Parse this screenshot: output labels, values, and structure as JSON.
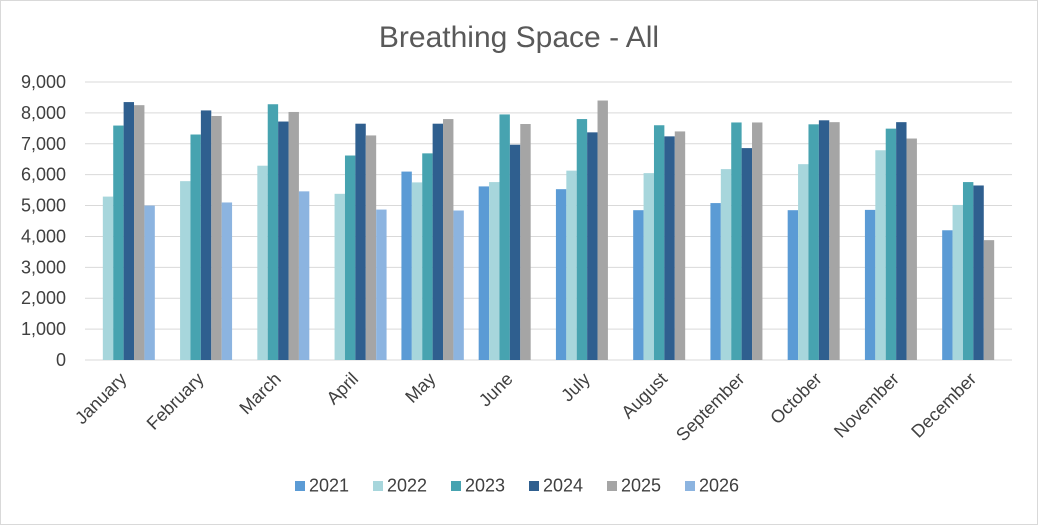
{
  "chart_data": {
    "type": "bar",
    "title": "Breathing Space - All",
    "xlabel": "",
    "ylabel": "",
    "ylim": [
      0,
      9000
    ],
    "yticks": [
      "0",
      "1,000",
      "2,000",
      "3,000",
      "4,000",
      "5,000",
      "6,000",
      "7,000",
      "8,000",
      "9,000"
    ],
    "ytick_values": [
      0,
      1000,
      2000,
      3000,
      4000,
      5000,
      6000,
      7000,
      8000,
      9000
    ],
    "grid": true,
    "legend_position": "bottom",
    "categories": [
      "January",
      "February",
      "March",
      "April",
      "May",
      "June",
      "July",
      "August",
      "September",
      "October",
      "November",
      "December"
    ],
    "series": [
      {
        "name": "2021",
        "color": "#5b9bd5",
        "values": [
          null,
          null,
          null,
          null,
          6100,
          5620,
          5530,
          4850,
          5080,
          4850,
          4860,
          4200
        ]
      },
      {
        "name": "2022",
        "color": "#a7d6dc",
        "values": [
          5290,
          5790,
          6290,
          5380,
          5750,
          5760,
          6130,
          6050,
          6180,
          6340,
          6790,
          5020
        ]
      },
      {
        "name": "2023",
        "color": "#47a3b0",
        "values": [
          7590,
          7300,
          8280,
          6620,
          6690,
          7950,
          7800,
          7600,
          7690,
          7630,
          7490,
          5760
        ]
      },
      {
        "name": "2024",
        "color": "#2f5f8f",
        "values": [
          8350,
          8080,
          7720,
          7650,
          7650,
          6970,
          7370,
          7240,
          6860,
          7760,
          7700,
          5650
        ]
      },
      {
        "name": "2025",
        "color": "#a5a5a5",
        "values": [
          8250,
          7900,
          8030,
          7270,
          7800,
          7640,
          8400,
          7400,
          7690,
          7700,
          7170,
          3880
        ]
      },
      {
        "name": "2026",
        "color": "#8cb4e0",
        "values": [
          5000,
          5100,
          5460,
          4870,
          4840,
          null,
          null,
          null,
          null,
          null,
          null,
          null
        ]
      }
    ]
  }
}
